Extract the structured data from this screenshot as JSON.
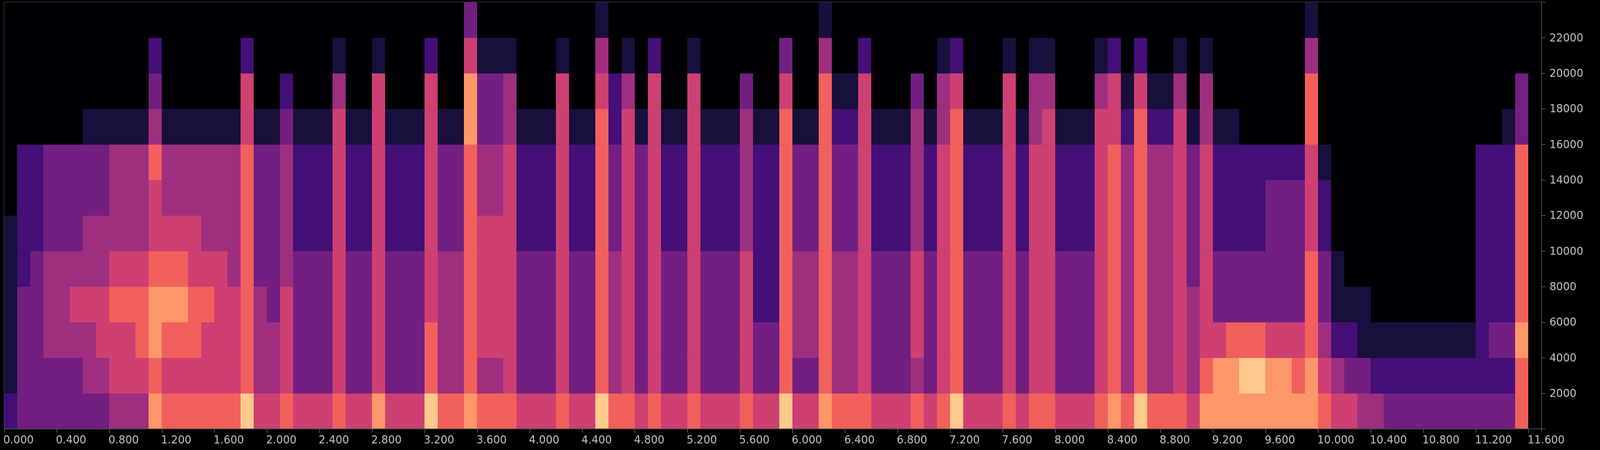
{
  "chart_data": {
    "type": "heatmap",
    "color": "magma",
    "xlim": [
      0,
      11.7
    ],
    "xticks": [
      {
        "value": 0,
        "label": "0.000"
      },
      {
        "value": 0.4,
        "label": "0.400"
      },
      {
        "value": 0.8,
        "label": "0.800"
      },
      {
        "value": 1.2,
        "label": "1.200"
      },
      {
        "value": 1.6,
        "label": "1.600"
      },
      {
        "value": 2,
        "label": "2.000"
      },
      {
        "value": 2.4,
        "label": "2.400"
      },
      {
        "value": 2.8,
        "label": "2.800"
      },
      {
        "value": 3.2,
        "label": "3.200"
      },
      {
        "value": 3.6,
        "label": "3.600"
      },
      {
        "value": 4,
        "label": "4.000"
      },
      {
        "value": 4.4,
        "label": "4.400"
      },
      {
        "value": 4.8,
        "label": "4.800"
      },
      {
        "value": 5.2,
        "label": "5.200"
      },
      {
        "value": 5.6,
        "label": "5.600"
      },
      {
        "value": 6,
        "label": "6.000"
      },
      {
        "value": 6.4,
        "label": "6.400"
      },
      {
        "value": 6.8,
        "label": "6.800"
      },
      {
        "value": 7.2,
        "label": "7.200"
      },
      {
        "value": 7.6,
        "label": "7.600"
      },
      {
        "value": 8,
        "label": "8.000"
      },
      {
        "value": 8.4,
        "label": "8.400"
      },
      {
        "value": 8.8,
        "label": "8.800"
      },
      {
        "value": 9.2,
        "label": "9.200"
      },
      {
        "value": 9.6,
        "label": "9.600"
      },
      {
        "value": 10,
        "label": "10.000"
      },
      {
        "value": 10.4,
        "label": "10.400"
      },
      {
        "value": 10.8,
        "label": "10.800"
      },
      {
        "value": 11.2,
        "label": "11.200"
      },
      {
        "value": 11.6,
        "label": "11.600"
      }
    ],
    "ylim": [
      0,
      24000
    ],
    "yticks": [
      2000,
      4000,
      6000,
      8000,
      10000,
      12000,
      14000,
      16000,
      18000,
      20000,
      22000
    ],
    "x_step": 0.1,
    "y_step": 2000,
    "zlim": [
      0,
      9
    ],
    "cells": [
      [
        2,
        1,
        1,
        1,
        1,
        1,
        0,
        0,
        0,
        0,
        0,
        0
      ],
      [
        3,
        3,
        3,
        3,
        2,
        2,
        2,
        2,
        0,
        0,
        0,
        0
      ],
      [
        3,
        3,
        3,
        3,
        3,
        2,
        2,
        2,
        0,
        0,
        0,
        0
      ],
      [
        3,
        3,
        4,
        4,
        4,
        3,
        3,
        3,
        0,
        0,
        0,
        0
      ],
      [
        3,
        3,
        4,
        4,
        4,
        3,
        3,
        3,
        0,
        0,
        0,
        0
      ],
      [
        3,
        3,
        4,
        5,
        4,
        3,
        3,
        3,
        0,
        0,
        0,
        0
      ],
      [
        3,
        4,
        4,
        5,
        4,
        4,
        3,
        3,
        1,
        0,
        0,
        0
      ],
      [
        3,
        4,
        5,
        5,
        4,
        4,
        3,
        3,
        1,
        0,
        0,
        0
      ],
      [
        4,
        5,
        5,
        6,
        5,
        4,
        4,
        4,
        1,
        0,
        0,
        0
      ],
      [
        4,
        5,
        5,
        6,
        5,
        4,
        4,
        4,
        1,
        0,
        0,
        0
      ],
      [
        4,
        5,
        6,
        6,
        5,
        4,
        4,
        4,
        1,
        0,
        0,
        0
      ],
      [
        7,
        6,
        7,
        7,
        6,
        5,
        5,
        6,
        4,
        3,
        2,
        0
      ],
      [
        6,
        5,
        6,
        7,
        6,
        5,
        4,
        4,
        1,
        0,
        0,
        0
      ],
      [
        6,
        5,
        6,
        7,
        6,
        5,
        4,
        4,
        1,
        0,
        0,
        0
      ],
      [
        6,
        5,
        6,
        6,
        5,
        5,
        4,
        4,
        1,
        0,
        0,
        0
      ],
      [
        6,
        5,
        5,
        6,
        5,
        4,
        4,
        4,
        1,
        0,
        0,
        0
      ],
      [
        6,
        5,
        5,
        5,
        5,
        4,
        4,
        4,
        1,
        0,
        0,
        0
      ],
      [
        6,
        5,
        5,
        5,
        4,
        4,
        4,
        4,
        1,
        0,
        0,
        0
      ],
      [
        8,
        6,
        6,
        6,
        6,
        6,
        6,
        6,
        5,
        5,
        2,
        0
      ],
      [
        5,
        4,
        4,
        4,
        3,
        3,
        3,
        3,
        1,
        0,
        0,
        0
      ],
      [
        5,
        4,
        4,
        3,
        3,
        3,
        3,
        3,
        1,
        0,
        0,
        0
      ],
      [
        6,
        5,
        5,
        5,
        4,
        4,
        4,
        4,
        3,
        2,
        0,
        0
      ],
      [
        5,
        3,
        3,
        3,
        3,
        2,
        2,
        2,
        1,
        0,
        0,
        0
      ],
      [
        5,
        3,
        3,
        3,
        3,
        2,
        2,
        2,
        1,
        0,
        0,
        0
      ],
      [
        5,
        3,
        3,
        3,
        3,
        2,
        2,
        2,
        1,
        0,
        0,
        0
      ],
      [
        6,
        5,
        5,
        5,
        5,
        5,
        5,
        5,
        5,
        4,
        1,
        0
      ],
      [
        5,
        3,
        3,
        3,
        3,
        2,
        2,
        2,
        1,
        0,
        0,
        0
      ],
      [
        5,
        3,
        3,
        3,
        3,
        2,
        2,
        2,
        1,
        0,
        0,
        0
      ],
      [
        7,
        5,
        5,
        5,
        5,
        5,
        5,
        5,
        5,
        5,
        1,
        0
      ],
      [
        5,
        3,
        3,
        3,
        3,
        2,
        2,
        2,
        1,
        0,
        0,
        0
      ],
      [
        5,
        3,
        3,
        3,
        3,
        2,
        2,
        2,
        1,
        0,
        0,
        0
      ],
      [
        5,
        3,
        3,
        3,
        3,
        2,
        2,
        2,
        1,
        0,
        0,
        0
      ],
      [
        8,
        6,
        6,
        5,
        5,
        5,
        5,
        5,
        5,
        5,
        2,
        0
      ],
      [
        6,
        4,
        4,
        4,
        4,
        3,
        3,
        3,
        1,
        0,
        0,
        0
      ],
      [
        6,
        4,
        4,
        4,
        4,
        3,
        3,
        3,
        1,
        0,
        0,
        0
      ],
      [
        7,
        6,
        6,
        6,
        6,
        6,
        6,
        6,
        7,
        7,
        5,
        3
      ],
      [
        6,
        4,
        5,
        5,
        5,
        5,
        4,
        4,
        3,
        3,
        1,
        0
      ],
      [
        6,
        4,
        5,
        5,
        5,
        5,
        4,
        4,
        3,
        3,
        1,
        0
      ],
      [
        6,
        5,
        5,
        5,
        5,
        5,
        5,
        5,
        4,
        4,
        1,
        0
      ],
      [
        5,
        3,
        3,
        3,
        3,
        2,
        2,
        2,
        1,
        0,
        0,
        0
      ],
      [
        5,
        3,
        3,
        3,
        3,
        2,
        2,
        2,
        1,
        0,
        0,
        0
      ],
      [
        5,
        3,
        3,
        3,
        3,
        2,
        2,
        2,
        1,
        0,
        0,
        0
      ],
      [
        6,
        5,
        5,
        5,
        5,
        5,
        5,
        5,
        5,
        5,
        1,
        0
      ],
      [
        5,
        3,
        3,
        3,
        3,
        2,
        2,
        2,
        1,
        0,
        0,
        0
      ],
      [
        5,
        3,
        3,
        3,
        3,
        2,
        2,
        2,
        1,
        0,
        0,
        0
      ],
      [
        8,
        6,
        6,
        6,
        6,
        6,
        6,
        6,
        6,
        5,
        4,
        1
      ],
      [
        6,
        4,
        4,
        4,
        4,
        3,
        3,
        3,
        2,
        2,
        0,
        0
      ],
      [
        6,
        5,
        5,
        5,
        5,
        5,
        5,
        5,
        5,
        4,
        1,
        0
      ],
      [
        5,
        3,
        3,
        3,
        3,
        3,
        3,
        3,
        1,
        0,
        0,
        0
      ],
      [
        6,
        5,
        5,
        5,
        5,
        5,
        5,
        5,
        5,
        5,
        2,
        0
      ],
      [
        5,
        3,
        3,
        3,
        3,
        2,
        2,
        2,
        1,
        0,
        0,
        0
      ],
      [
        5,
        3,
        3,
        3,
        3,
        2,
        2,
        2,
        1,
        0,
        0,
        0
      ],
      [
        6,
        5,
        5,
        5,
        5,
        5,
        5,
        5,
        5,
        5,
        1,
        0
      ],
      [
        5,
        3,
        3,
        3,
        3,
        2,
        2,
        2,
        1,
        0,
        0,
        0
      ],
      [
        5,
        3,
        3,
        3,
        3,
        2,
        2,
        2,
        1,
        0,
        0,
        0
      ],
      [
        5,
        3,
        3,
        3,
        3,
        2,
        2,
        2,
        1,
        0,
        0,
        0
      ],
      [
        6,
        5,
        5,
        5,
        5,
        4,
        4,
        4,
        4,
        3,
        0,
        0
      ],
      [
        5,
        3,
        3,
        2,
        2,
        2,
        2,
        2,
        1,
        0,
        0,
        0
      ],
      [
        5,
        3,
        3,
        2,
        2,
        2,
        2,
        2,
        1,
        0,
        0,
        0
      ],
      [
        8,
        6,
        6,
        6,
        6,
        6,
        6,
        6,
        6,
        5,
        3,
        0
      ],
      [
        5,
        3,
        4,
        4,
        4,
        3,
        3,
        3,
        1,
        0,
        0,
        0
      ],
      [
        5,
        3,
        4,
        4,
        4,
        3,
        3,
        3,
        1,
        0,
        0,
        0
      ],
      [
        7,
        6,
        6,
        6,
        6,
        6,
        6,
        6,
        6,
        6,
        4,
        1
      ],
      [
        6,
        4,
        4,
        4,
        4,
        3,
        3,
        3,
        2,
        1,
        0,
        0
      ],
      [
        6,
        4,
        4,
        4,
        4,
        3,
        3,
        3,
        2,
        1,
        0,
        0
      ],
      [
        6,
        5,
        5,
        5,
        5,
        5,
        5,
        5,
        5,
        5,
        2,
        0
      ],
      [
        5,
        3,
        3,
        3,
        3,
        2,
        2,
        2,
        1,
        0,
        0,
        0
      ],
      [
        5,
        3,
        3,
        3,
        3,
        2,
        2,
        2,
        1,
        0,
        0,
        0
      ],
      [
        5,
        3,
        3,
        3,
        3,
        2,
        2,
        2,
        1,
        0,
        0,
        0
      ],
      [
        6,
        4,
        5,
        5,
        5,
        4,
        4,
        4,
        4,
        3,
        0,
        0
      ],
      [
        5,
        3,
        3,
        3,
        3,
        2,
        2,
        2,
        1,
        0,
        0,
        0
      ],
      [
        6,
        5,
        5,
        5,
        5,
        5,
        5,
        5,
        4,
        4,
        1,
        0
      ],
      [
        8,
        6,
        6,
        6,
        6,
        6,
        6,
        6,
        6,
        5,
        2,
        0
      ],
      [
        5,
        3,
        3,
        3,
        3,
        2,
        2,
        2,
        1,
        0,
        0,
        0
      ],
      [
        5,
        3,
        3,
        3,
        3,
        2,
        2,
        2,
        1,
        0,
        0,
        0
      ],
      [
        5,
        3,
        3,
        3,
        3,
        2,
        2,
        2,
        1,
        0,
        0,
        0
      ],
      [
        6,
        5,
        5,
        5,
        5,
        5,
        5,
        5,
        5,
        5,
        1,
        0
      ],
      [
        5,
        3,
        3,
        3,
        3,
        2,
        2,
        2,
        1,
        0,
        0,
        0
      ],
      [
        6,
        5,
        5,
        5,
        5,
        5,
        5,
        5,
        4,
        4,
        1,
        0
      ],
      [
        6,
        5,
        5,
        5,
        5,
        5,
        5,
        5,
        5,
        4,
        1,
        0
      ],
      [
        5,
        3,
        3,
        3,
        3,
        2,
        2,
        2,
        1,
        0,
        0,
        0
      ],
      [
        5,
        3,
        3,
        3,
        3,
        2,
        2,
        2,
        1,
        0,
        0,
        0
      ],
      [
        5,
        3,
        3,
        3,
        3,
        2,
        2,
        2,
        1,
        0,
        0,
        0
      ],
      [
        6,
        5,
        5,
        5,
        5,
        5,
        5,
        5,
        5,
        4,
        1,
        0
      ],
      [
        7,
        6,
        6,
        6,
        6,
        6,
        6,
        6,
        5,
        5,
        2,
        0
      ],
      [
        6,
        4,
        4,
        4,
        4,
        4,
        4,
        4,
        2,
        1,
        0,
        0
      ],
      [
        8,
        6,
        6,
        6,
        6,
        6,
        6,
        6,
        6,
        5,
        2,
        0
      ],
      [
        6,
        4,
        4,
        4,
        4,
        4,
        4,
        4,
        2,
        1,
        0,
        0
      ],
      [
        6,
        4,
        4,
        4,
        4,
        4,
        4,
        4,
        2,
        1,
        0,
        0
      ],
      [
        6,
        5,
        5,
        5,
        5,
        5,
        5,
        5,
        5,
        4,
        1,
        0
      ],
      [
        5,
        4,
        4,
        4,
        3,
        3,
        3,
        3,
        1,
        0,
        0,
        0
      ],
      [
        7,
        6,
        5,
        5,
        5,
        5,
        5,
        5,
        4,
        4,
        1,
        0
      ],
      [
        7,
        7,
        5,
        3,
        3,
        2,
        2,
        2,
        1,
        0,
        0,
        0
      ],
      [
        7,
        7,
        6,
        3,
        3,
        2,
        2,
        2,
        1,
        0,
        0,
        0
      ],
      [
        7,
        8,
        6,
        3,
        3,
        2,
        2,
        2,
        0,
        0,
        0,
        0
      ],
      [
        7,
        8,
        6,
        3,
        3,
        2,
        2,
        2,
        0,
        0,
        0,
        0
      ],
      [
        7,
        7,
        5,
        3,
        3,
        3,
        3,
        2,
        0,
        0,
        0,
        0
      ],
      [
        7,
        7,
        5,
        3,
        3,
        3,
        3,
        2,
        0,
        0,
        0,
        0
      ],
      [
        7,
        6,
        5,
        3,
        3,
        3,
        3,
        2,
        0,
        0,
        0,
        0
      ],
      [
        7,
        7,
        6,
        6,
        6,
        5,
        5,
        5,
        6,
        6,
        4,
        1
      ],
      [
        6,
        5,
        4,
        3,
        3,
        2,
        2,
        1,
        0,
        0,
        0,
        0
      ],
      [
        5,
        4,
        2,
        1,
        1,
        0,
        0,
        0,
        0,
        0,
        0,
        0
      ],
      [
        5,
        3,
        2,
        1,
        0,
        0,
        0,
        0,
        0,
        0,
        0,
        0
      ],
      [
        4,
        3,
        1,
        1,
        0,
        0,
        0,
        0,
        0,
        0,
        0,
        0
      ],
      [
        4,
        2,
        1,
        0,
        0,
        0,
        0,
        0,
        0,
        0,
        0,
        0
      ],
      [
        3,
        2,
        1,
        0,
        0,
        0,
        0,
        0,
        0,
        0,
        0,
        0
      ],
      [
        3,
        2,
        1,
        0,
        0,
        0,
        0,
        0,
        0,
        0,
        0,
        0
      ],
      [
        3,
        2,
        1,
        0,
        0,
        0,
        0,
        0,
        0,
        0,
        0,
        0
      ],
      [
        3,
        2,
        1,
        0,
        0,
        0,
        0,
        0,
        0,
        0,
        0,
        0
      ],
      [
        3,
        2,
        1,
        0,
        0,
        0,
        0,
        0,
        0,
        0,
        0,
        0
      ],
      [
        3,
        2,
        1,
        0,
        0,
        0,
        0,
        0,
        0,
        0,
        0,
        0
      ],
      [
        3,
        2,
        1,
        0,
        0,
        0,
        0,
        0,
        0,
        0,
        0,
        0
      ],
      [
        3,
        2,
        2,
        2,
        2,
        2,
        2,
        2,
        0,
        0,
        0,
        0
      ],
      [
        3,
        2,
        3,
        2,
        2,
        2,
        2,
        2,
        0,
        0,
        0,
        0
      ],
      [
        3,
        2,
        3,
        2,
        2,
        2,
        2,
        2,
        1,
        0,
        0,
        0
      ],
      [
        6,
        6,
        7,
        6,
        6,
        6,
        6,
        6,
        3,
        3,
        0,
        0
      ],
      [
        0,
        0,
        0,
        0,
        0,
        0,
        0,
        0,
        0,
        0,
        0,
        0
      ]
    ]
  }
}
